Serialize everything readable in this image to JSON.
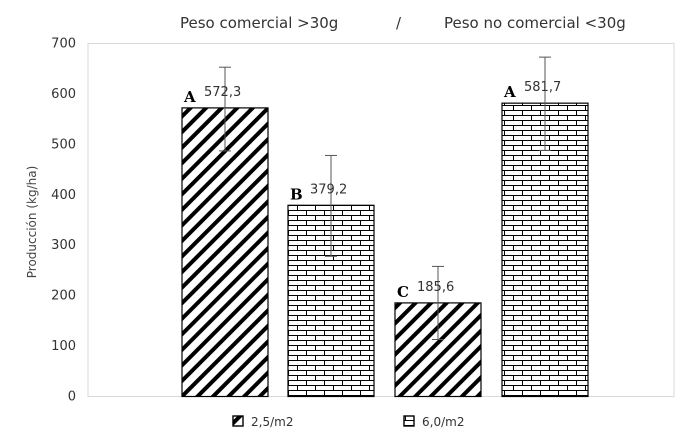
{
  "chart_data": {
    "type": "bar",
    "title_left": "Peso comercial >30g",
    "title_sep": "/",
    "title_right": "Peso no comercial <30g",
    "ylabel": "Producción (kg/ha)",
    "ylim": [
      0,
      700
    ],
    "yticks": [
      0,
      100,
      200,
      300,
      400,
      500,
      600,
      700
    ],
    "grid": false,
    "legend_position": "bottom",
    "series": [
      {
        "name": "2,5/m2",
        "pattern": "diagonal"
      },
      {
        "name": "6,0/m2",
        "pattern": "brick"
      }
    ],
    "bars": [
      {
        "series": 0,
        "value": 572.3,
        "label": "572,3",
        "letter": "A",
        "err_low": 487,
        "err_high": 653
      },
      {
        "series": 1,
        "value": 379.2,
        "label": "379,2",
        "letter": "B",
        "err_low": 278,
        "err_high": 478
      },
      {
        "series": 0,
        "value": 185.6,
        "label": "185,6",
        "letter": "C",
        "err_low": 113,
        "err_high": 258
      },
      {
        "series": 1,
        "value": 581.7,
        "label": "581,7",
        "letter": "A",
        "err_low": 488,
        "err_high": 673
      }
    ]
  }
}
